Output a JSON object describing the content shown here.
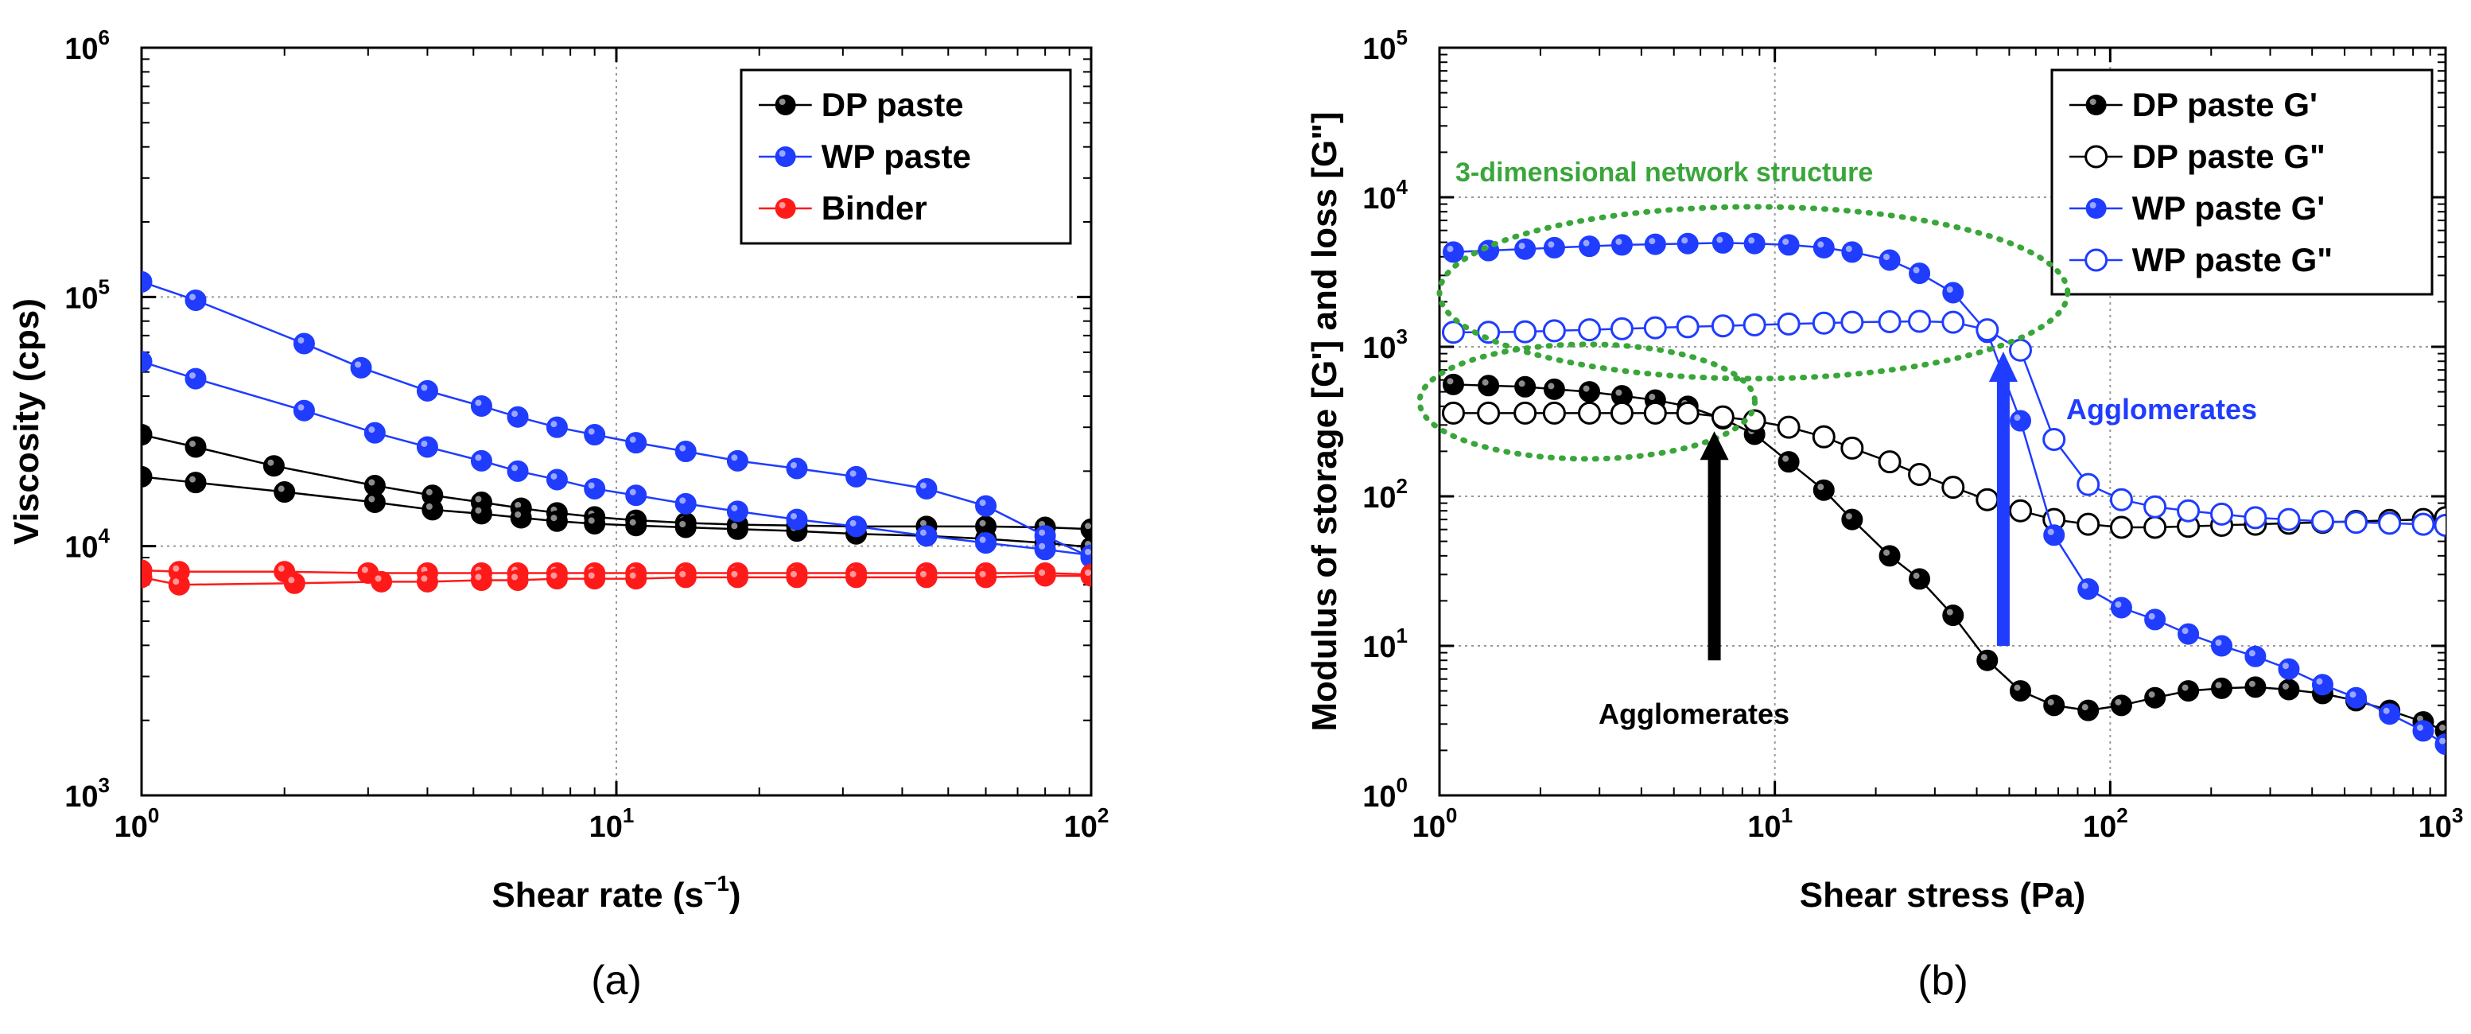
{
  "chart_data": [
    {
      "type": "scatter",
      "panel_label": "(a)",
      "xlabel": "Shear rate (s",
      "xlabel_sup": "−1",
      "xlabel_close": ")",
      "ylabel": "Viscosity (cps)",
      "x_log": true,
      "y_log": true,
      "xlim": [
        1,
        100
      ],
      "ylim": [
        1000,
        1000000
      ],
      "x_ticks": [
        {
          "base": "10",
          "exp": "0",
          "value": 1
        },
        {
          "base": "10",
          "exp": "1",
          "value": 10
        },
        {
          "base": "10",
          "exp": "2",
          "value": 100
        }
      ],
      "y_ticks": [
        {
          "base": "10",
          "exp": "3",
          "value": 1000
        },
        {
          "base": "10",
          "exp": "4",
          "value": 10000
        },
        {
          "base": "10",
          "exp": "5",
          "value": 100000
        },
        {
          "base": "10",
          "exp": "6",
          "value": 1000000
        }
      ],
      "grid": true,
      "legend_position": "top-right",
      "series": [
        {
          "name": "DP paste",
          "color": "#000000",
          "marker": "filled",
          "curves": [
            {
              "x": [
                1.0,
                1.3,
                1.9,
                3.1,
                4.1,
                5.2,
                6.3,
                7.5,
                9.0,
                11,
                14,
                18,
                24,
                32,
                45,
                60,
                80,
                100
              ],
              "y": [
                28000,
                25000,
                21000,
                17500,
                16000,
                15000,
                14200,
                13600,
                13100,
                12700,
                12400,
                12200,
                12100,
                12000,
                12000,
                12000,
                11900,
                11700
              ]
            },
            {
              "x": [
                1.0,
                1.3,
                2.0,
                3.1,
                4.1,
                5.2,
                6.3,
                7.5,
                9.0,
                11,
                14,
                18,
                24,
                32,
                45,
                60,
                80,
                100
              ],
              "y": [
                19000,
                18000,
                16500,
                15000,
                14000,
                13500,
                13000,
                12600,
                12300,
                12100,
                11900,
                11700,
                11500,
                11200,
                11000,
                10700,
                10300,
                9900
              ]
            }
          ]
        },
        {
          "name": "WP paste",
          "color": "#1f3cff",
          "marker": "filled",
          "curves": [
            {
              "x": [
                1.0,
                1.3,
                2.2,
                2.9,
                4.0,
                5.2,
                6.2,
                7.5,
                9.0,
                11,
                14,
                18,
                24,
                32,
                45,
                60,
                80,
                100
              ],
              "y": [
                115000,
                97000,
                65000,
                52000,
                42000,
                36500,
                33000,
                30000,
                28000,
                26000,
                24000,
                22000,
                20500,
                19000,
                17000,
                14500,
                11000,
                9000
              ]
            },
            {
              "x": [
                1.0,
                1.3,
                2.2,
                3.1,
                4.0,
                5.2,
                6.2,
                7.5,
                9.0,
                11,
                14,
                18,
                24,
                32,
                45,
                60,
                80,
                100
              ],
              "y": [
                55000,
                47000,
                35000,
                28500,
                25000,
                22000,
                20000,
                18500,
                17000,
                16000,
                14800,
                13800,
                12800,
                12000,
                11000,
                10300,
                9700,
                9200
              ]
            }
          ]
        },
        {
          "name": "Binder",
          "color": "#ff1a1a",
          "marker": "filled",
          "curves": [
            {
              "x": [
                1.0,
                1.2,
                2.0,
                3.0,
                4.0,
                5.2,
                6.2,
                7.5,
                9.0,
                11,
                14,
                18,
                24,
                32,
                45,
                60,
                80,
                100
              ],
              "y": [
                8000,
                7900,
                7900,
                7800,
                7800,
                7800,
                7800,
                7800,
                7800,
                7800,
                7800,
                7800,
                7800,
                7800,
                7800,
                7800,
                7800,
                7700
              ]
            },
            {
              "x": [
                1.0,
                1.2,
                2.1,
                3.2,
                4.0,
                5.2,
                6.2,
                7.5,
                9.0,
                11,
                14,
                18,
                24,
                32,
                45,
                60,
                80,
                100
              ],
              "y": [
                7500,
                7000,
                7100,
                7200,
                7200,
                7300,
                7300,
                7400,
                7400,
                7400,
                7500,
                7500,
                7500,
                7500,
                7500,
                7500,
                7600,
                7600
              ]
            }
          ]
        }
      ]
    },
    {
      "type": "scatter",
      "panel_label": "(b)",
      "xlabel": "Shear stress (Pa)",
      "ylabel": "Modulus of storage [G'] and loss [G\"]",
      "x_log": true,
      "y_log": true,
      "xlim": [
        1,
        1000
      ],
      "ylim": [
        1,
        100000
      ],
      "x_ticks": [
        {
          "base": "10",
          "exp": "0",
          "value": 1
        },
        {
          "base": "10",
          "exp": "1",
          "value": 10
        },
        {
          "base": "10",
          "exp": "2",
          "value": 100
        },
        {
          "base": "10",
          "exp": "3",
          "value": 1000
        }
      ],
      "y_ticks": [
        {
          "base": "10",
          "exp": "0",
          "value": 1
        },
        {
          "base": "10",
          "exp": "1",
          "value": 10
        },
        {
          "base": "10",
          "exp": "2",
          "value": 100
        },
        {
          "base": "10",
          "exp": "3",
          "value": 1000
        },
        {
          "base": "10",
          "exp": "4",
          "value": 10000
        },
        {
          "base": "10",
          "exp": "5",
          "value": 100000
        }
      ],
      "grid": true,
      "legend_position": "top-right",
      "series": [
        {
          "name": "DP paste G'",
          "color": "#000000",
          "marker": "filled",
          "x": [
            1.1,
            1.4,
            1.8,
            2.2,
            2.8,
            3.5,
            4.4,
            5.5,
            7.0,
            8.7,
            11,
            14,
            17,
            22,
            27,
            34,
            43,
            54,
            68,
            86,
            108,
            136,
            171,
            215,
            271,
            341,
            430,
            541,
            681,
            858,
            1000
          ],
          "y": [
            560,
            550,
            540,
            520,
            500,
            470,
            440,
            400,
            330,
            260,
            170,
            110,
            70,
            40,
            28,
            16,
            8,
            5,
            4,
            3.7,
            4,
            4.5,
            5,
            5.2,
            5.3,
            5.1,
            4.8,
            4.3,
            3.7,
            3.1,
            2.7
          ]
        },
        {
          "name": "DP paste G\"",
          "color": "#000000",
          "marker": "open",
          "x": [
            1.1,
            1.4,
            1.8,
            2.2,
            2.8,
            3.5,
            4.4,
            5.5,
            7.0,
            8.7,
            11,
            14,
            17,
            22,
            27,
            34,
            43,
            54,
            68,
            86,
            108,
            136,
            171,
            215,
            271,
            341,
            430,
            541,
            681,
            858,
            1000
          ],
          "y": [
            360,
            360,
            360,
            360,
            360,
            360,
            360,
            360,
            340,
            320,
            290,
            250,
            210,
            170,
            140,
            115,
            95,
            80,
            70,
            65,
            62,
            62,
            63,
            64,
            65,
            66,
            67,
            68,
            69,
            70,
            72
          ]
        },
        {
          "name": "WP paste G'",
          "color": "#1f3cff",
          "marker": "filled",
          "x": [
            1.1,
            1.4,
            1.8,
            2.2,
            2.8,
            3.5,
            4.4,
            5.5,
            7.0,
            8.7,
            11,
            14,
            17,
            22,
            27,
            34,
            43,
            54,
            68,
            86,
            108,
            136,
            171,
            215,
            271,
            341,
            430,
            541,
            681,
            858,
            1000
          ],
          "y": [
            4300,
            4400,
            4500,
            4600,
            4700,
            4800,
            4850,
            4900,
            4950,
            4900,
            4800,
            4600,
            4300,
            3800,
            3100,
            2300,
            1250,
            320,
            55,
            24,
            18,
            15,
            12,
            10,
            8.5,
            7,
            5.5,
            4.5,
            3.5,
            2.7,
            2.2
          ]
        },
        {
          "name": "WP paste G\"",
          "color": "#1f3cff",
          "marker": "open",
          "x": [
            1.1,
            1.4,
            1.8,
            2.2,
            2.8,
            3.5,
            4.4,
            5.5,
            7.0,
            8.7,
            11,
            14,
            17,
            22,
            27,
            34,
            43,
            54,
            68,
            86,
            108,
            136,
            171,
            215,
            271,
            341,
            430,
            541,
            681,
            858,
            1000
          ],
          "y": [
            1250,
            1250,
            1260,
            1280,
            1300,
            1320,
            1340,
            1360,
            1380,
            1400,
            1420,
            1440,
            1460,
            1470,
            1480,
            1460,
            1300,
            950,
            240,
            120,
            95,
            85,
            80,
            76,
            72,
            70,
            68,
            67,
            66,
            65,
            64
          ]
        }
      ],
      "annotations": {
        "network_label": "3-dimensional network structure",
        "agglomerates_black": "Agglomerates",
        "agglomerates_blue": "Agglomerates",
        "network_color": "#3aa63a",
        "blue_arrow_color": "#1f3cff",
        "black_arrow_color": "#000000"
      }
    }
  ]
}
